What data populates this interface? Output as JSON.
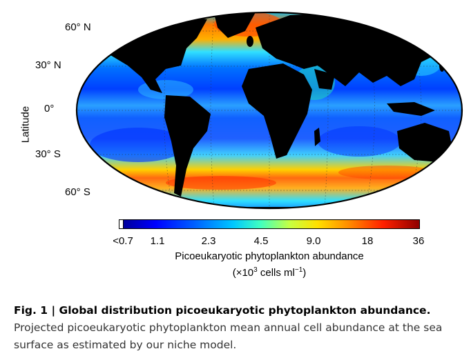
{
  "map": {
    "latitude_labels": [
      "60° N",
      "30° N",
      "0°",
      "30° S",
      "60° S"
    ],
    "axis_title": "Latitude",
    "projection": "Robinson-like global oval",
    "land_color": "#000000"
  },
  "colorbar": {
    "ticks": [
      "<0.7",
      "1.1",
      "2.3",
      "4.5",
      "9.0",
      "18",
      "36"
    ],
    "label": "Picoeukaryotic phytoplankton abundance",
    "units_prefix": "(×10",
    "units_exponent": "3",
    "units_middle": " cells ml",
    "units_exponent2": "−1",
    "units_suffix": ")",
    "colors": [
      "#00008f",
      "#0000ff",
      "#0060ff",
      "#00c8ff",
      "#40ffc0",
      "#c8ff40",
      "#ffe000",
      "#ff9000",
      "#ff2000",
      "#8f0000"
    ]
  },
  "caption": {
    "title": "Fig. 1 | Global distribution picoeukaryotic phytoplankton abundance.",
    "text": "Projected picoeukaryotic phytoplankton mean annual cell abundance at the sea surface as estimated by our niche model."
  }
}
